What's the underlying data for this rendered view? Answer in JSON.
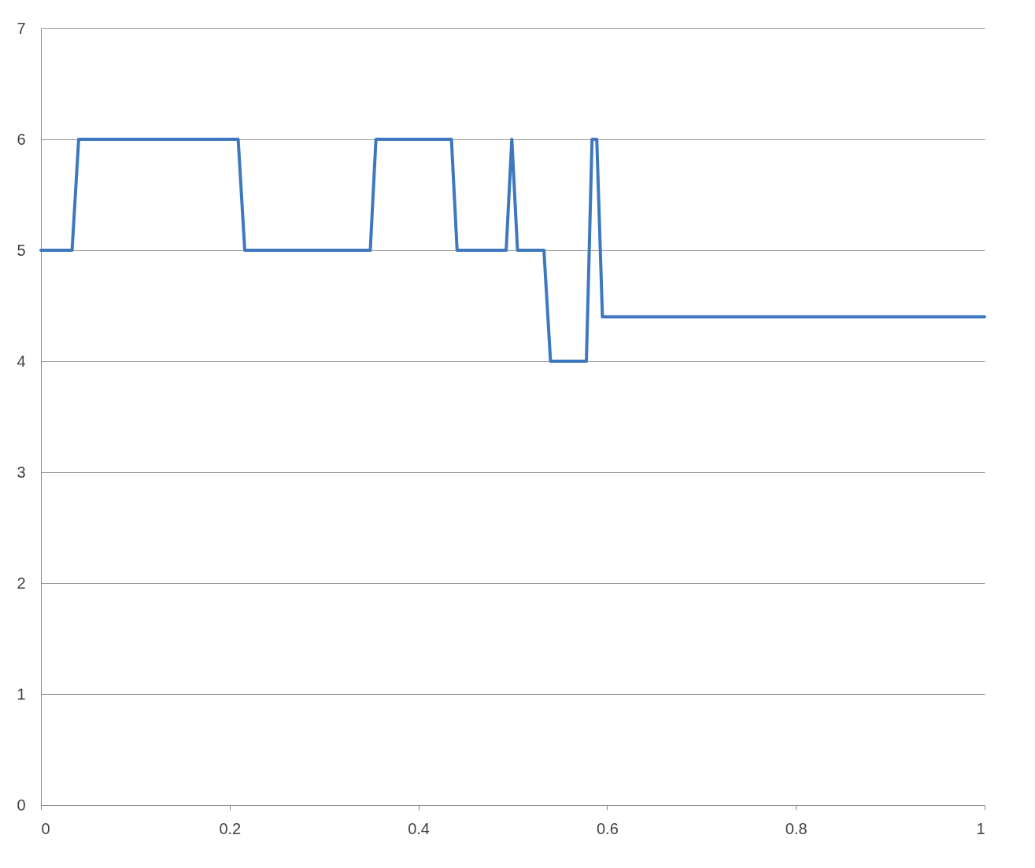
{
  "chart_data": {
    "type": "line",
    "x": [
      0,
      0.033,
      0.04,
      0.209,
      0.216,
      0.349,
      0.355,
      0.435,
      0.441,
      0.493,
      0.499,
      0.505,
      0.533,
      0.54,
      0.578,
      0.584,
      0.589,
      0.595,
      1
    ],
    "series": [
      {
        "color": "#3d78bf",
        "values": [
          5,
          5,
          6,
          6,
          5,
          5,
          6,
          6,
          5,
          5,
          6,
          5,
          5,
          4,
          4,
          6,
          6,
          4.4,
          4.4
        ]
      }
    ],
    "xlim": [
      0,
      1
    ],
    "xticks": [
      0,
      0.2,
      0.4,
      0.6,
      0.8,
      1
    ],
    "ylim": [
      0,
      7
    ],
    "yticks": [
      0,
      1,
      2,
      3,
      4,
      5,
      6,
      7
    ],
    "grid": "y",
    "marker": "none",
    "line_style": "solid"
  }
}
